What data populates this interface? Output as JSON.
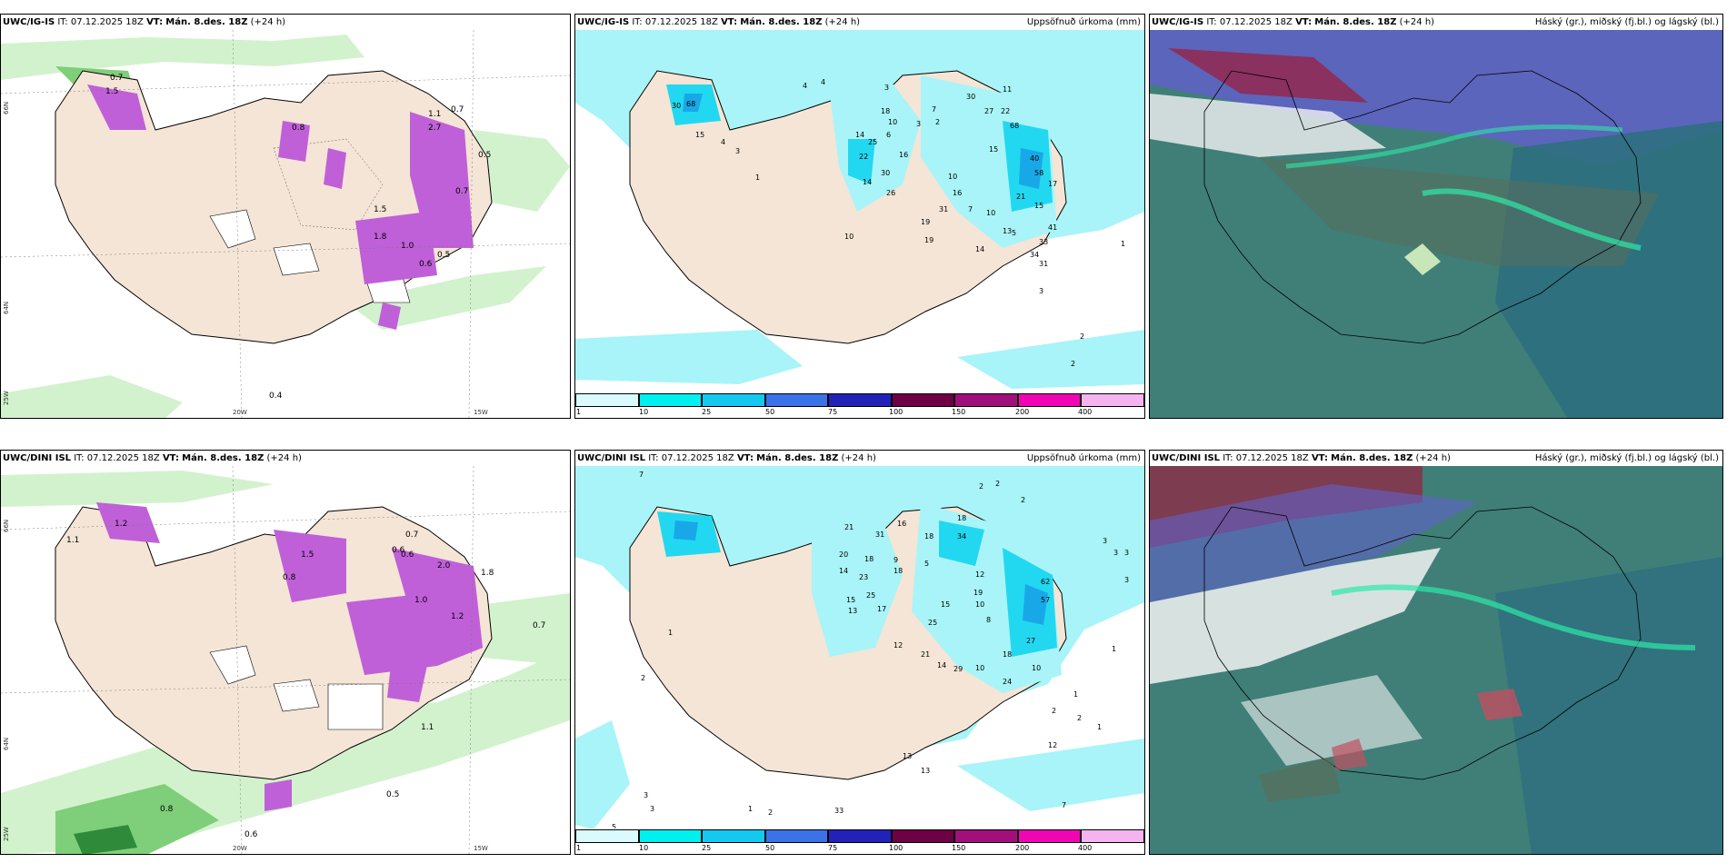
{
  "rows": [
    {
      "model": "UWC/IG-IS",
      "it_label": "IT:",
      "it_time": "07.12.2025 18Z",
      "vt_label": "VT:",
      "vt_time": "Mán. 8.des. 18Z",
      "lead": "(+24 h)"
    },
    {
      "model": "UWC/DINI ISL",
      "it_label": "IT:",
      "it_time": "07.12.2025 18Z",
      "vt_label": "VT:",
      "vt_time": "Mán. 8.des. 18Z",
      "lead": "(+24 h)"
    }
  ],
  "precip_title": "Uppsöfnuð úrkoma (mm)",
  "cloud_title": "Háský (gr.), miðský (fj.bl.) og lágský (bl.)",
  "axis_labels": {
    "lat66": "66N",
    "lat64": "64N",
    "lon20": "20W",
    "lon15": "15W",
    "lon25": "25W"
  },
  "colorbar": {
    "ticks": [
      "1",
      "10",
      "25",
      "50",
      "75",
      "100",
      "150",
      "200",
      "400"
    ],
    "colors": [
      "#d9fbfd",
      "#00f0f0",
      "#15c8f0",
      "#3a72e8",
      "#2222b8",
      "#6e0046",
      "#a0107a",
      "#f005b4",
      "#f4b4f0"
    ]
  },
  "colors": {
    "land": "#f4e5d6",
    "precip_light": "#a8f4f8",
    "precip_mid": "#22d8f0",
    "precip_deep": "#18a8e8",
    "wind_green_light": "#d2f2cd",
    "wind_green": "#7fce7a",
    "magenta": "#c060d8",
    "cloud_base": "#3f7f78",
    "cloud_low": "#2e6f80",
    "cloud_high": "#6060c8"
  },
  "panel_values": {
    "a1": [
      "0.7",
      "1.5",
      "1.1",
      "0.7",
      "2.7",
      "1.5",
      "0.5",
      "0.8",
      "0.7",
      "1.8",
      "1.0",
      "0.6",
      "0.5",
      "0.4"
    ],
    "b1": [
      "4",
      "4",
      "3",
      "30",
      "11",
      "27",
      "22",
      "68",
      "15",
      "14",
      "25",
      "22",
      "16",
      "30",
      "14",
      "26",
      "10",
      "16",
      "31",
      "7",
      "10",
      "19",
      "19",
      "14",
      "13",
      "34",
      "31",
      "21",
      "40",
      "17",
      "41",
      "33",
      "58",
      "3",
      "2",
      "2",
      "10",
      "5",
      "15",
      "30",
      "68",
      "15",
      "4",
      "3",
      "1",
      "1",
      "18",
      "10",
      "6",
      "3",
      "2",
      "7"
    ],
    "a2": [
      "1.2",
      "1.1",
      "0.6",
      "2.0",
      "1.5",
      "0.8",
      "0.7",
      "0.6",
      "1.8",
      "1.1",
      "0.5",
      "0.8",
      "0.6",
      "0.7",
      "1.0",
      "1.2"
    ],
    "b2": [
      "7",
      "2",
      "2",
      "2",
      "16",
      "18",
      "21",
      "31",
      "18",
      "20",
      "18",
      "14",
      "23",
      "9",
      "18",
      "15",
      "13",
      "25",
      "17",
      "5",
      "34",
      "15",
      "12",
      "19",
      "10",
      "62",
      "57",
      "25",
      "8",
      "21",
      "14",
      "29",
      "10",
      "12",
      "24",
      "18",
      "27",
      "10",
      "3",
      "3",
      "3",
      "3",
      "1",
      "1",
      "1",
      "2",
      "2",
      "7",
      "13",
      "13",
      "33",
      "12",
      "3",
      "3",
      "5",
      "1",
      "2",
      "1",
      "2"
    ]
  }
}
